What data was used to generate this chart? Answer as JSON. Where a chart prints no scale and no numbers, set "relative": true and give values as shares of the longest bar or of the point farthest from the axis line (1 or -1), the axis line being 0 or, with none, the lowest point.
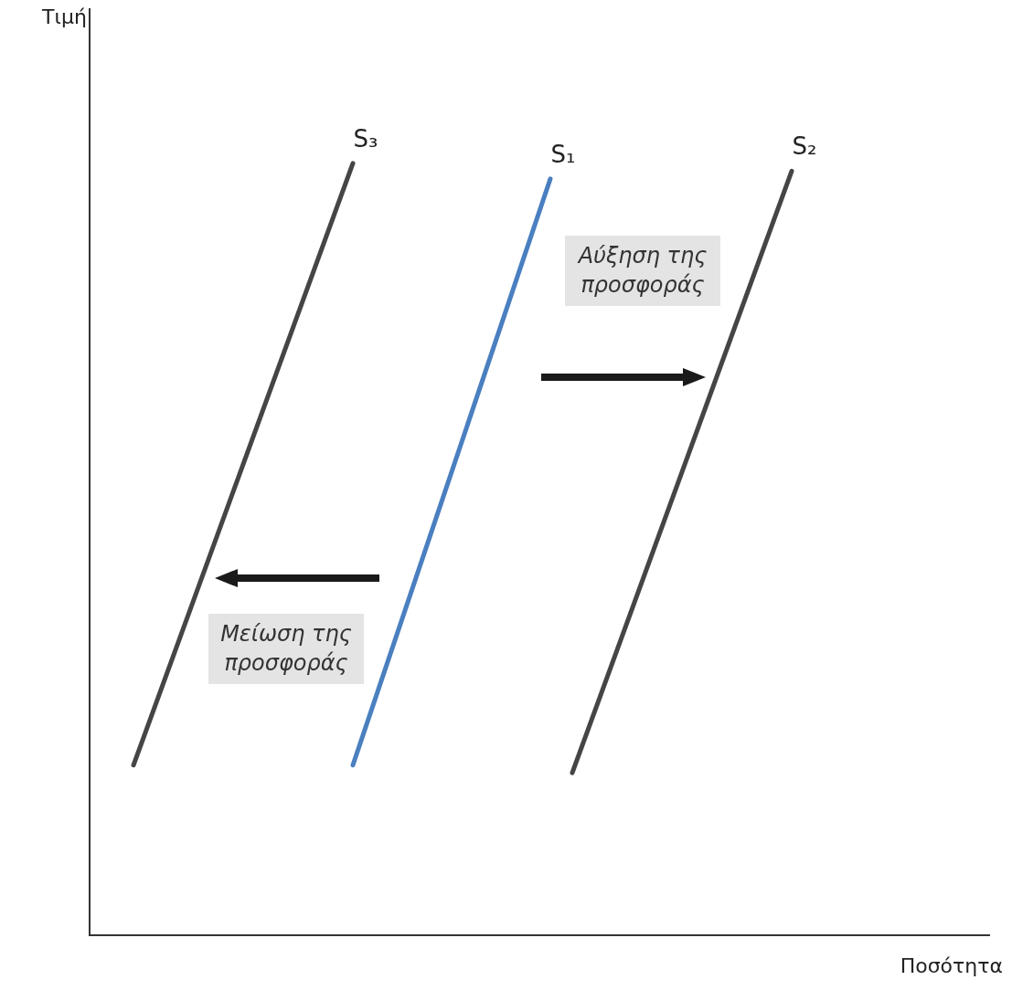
{
  "chart_data": {
    "type": "line",
    "relative": true,
    "xlabel": "Ποσότητα",
    "grid": false,
    "legend": false,
    "marker": "none",
    "line_style": "solid",
    "annotations": [
      "Τιμή",
      "Αύξηση της προσφοράς",
      "Μείωση της προσφοράς"
    ],
    "categories": [
      null,
      null,
      null,
      null,
      null,
      null,
      null,
      null,
      null,
      null,
      null,
      null,
      null,
      null,
      null,
      null,
      null,
      null,
      null,
      null,
      null,
      null,
      null,
      null,
      null,
      null,
      null,
      null,
      null,
      null,
      null,
      null,
      null,
      null,
      null,
      null,
      null,
      null,
      null,
      null,
      null,
      null
    ],
    "series": [
      {
        "name": "S₃",
        "color": "#454545",
        "values": [
          null,
          null,
          0.22,
          null,
          null,
          null,
          null,
          null,
          null,
          null,
          null,
          null,
          1,
          null,
          null,
          null,
          null,
          null,
          null,
          null,
          null,
          null,
          null,
          null,
          null,
          null,
          null,
          null,
          null,
          null,
          null,
          null,
          null,
          null,
          null,
          null,
          null,
          null,
          null,
          null,
          null,
          null
        ]
      },
      {
        "name": "S₁",
        "color": "#4a7fc0",
        "values": [
          null,
          null,
          null,
          null,
          null,
          null,
          null,
          null,
          null,
          null,
          null,
          null,
          0.22,
          null,
          null,
          null,
          null,
          null,
          null,
          null,
          null,
          0.98,
          null,
          null,
          null,
          null,
          null,
          null,
          null,
          null,
          null,
          null,
          null,
          null,
          null,
          null,
          null,
          null,
          null,
          null,
          null,
          null
        ]
      },
      {
        "name": "S₂",
        "color": "#454545",
        "values": [
          null,
          null,
          null,
          null,
          null,
          null,
          null,
          null,
          null,
          null,
          null,
          null,
          null,
          null,
          null,
          null,
          null,
          null,
          null,
          null,
          null,
          null,
          0.21,
          null,
          null,
          null,
          null,
          null,
          null,
          null,
          null,
          null,
          0.99,
          null,
          null,
          null,
          null,
          null,
          null,
          null,
          null,
          null
        ]
      }
    ]
  }
}
